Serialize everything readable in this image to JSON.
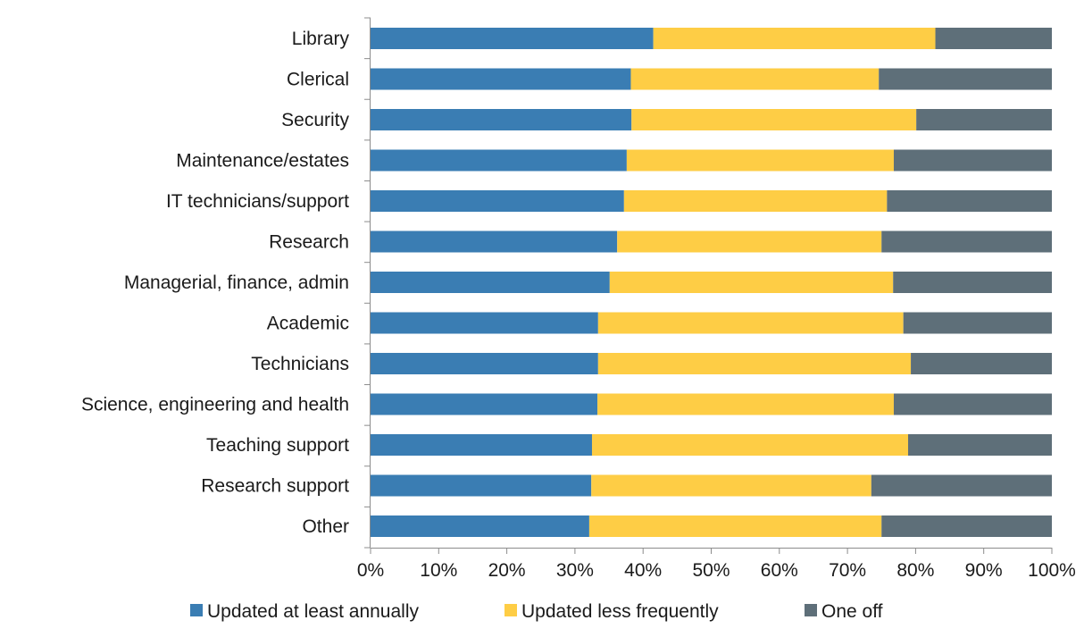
{
  "chart_data": {
    "type": "bar",
    "orientation": "horizontal",
    "stacked": "percent",
    "categories": [
      "Library",
      "Clerical",
      "Security",
      "Maintenance/estates",
      "IT technicians/support",
      "Research",
      "Managerial, finance, admin",
      "Academic",
      "Technicians",
      "Science, engineering and health",
      "Teaching support",
      "Research support",
      "Other"
    ],
    "series": [
      {
        "name": "Updated at least annually",
        "color": "#3a7db3",
        "values": [
          41.5,
          38.2,
          38.3,
          37.6,
          37.2,
          36.2,
          35.1,
          33.4,
          33.4,
          33.3,
          32.5,
          32.4,
          32.1
        ]
      },
      {
        "name": "Updated less frequently",
        "color": "#fecd45",
        "values": [
          41.4,
          36.4,
          41.8,
          39.2,
          38.6,
          38.8,
          41.6,
          44.8,
          45.9,
          43.5,
          46.4,
          41.1,
          42.9
        ]
      },
      {
        "name": "One off",
        "color": "#5e6f79",
        "values": [
          17.1,
          25.4,
          19.9,
          23.2,
          24.2,
          25.0,
          23.3,
          21.8,
          20.7,
          23.2,
          21.1,
          26.5,
          25.0
        ]
      }
    ],
    "xlim": [
      0,
      100
    ],
    "xticks": [
      "0%",
      "10%",
      "20%",
      "30%",
      "40%",
      "50%",
      "60%",
      "70%",
      "80%",
      "90%",
      "100%"
    ],
    "grid": false,
    "legend_position": "bottom"
  }
}
